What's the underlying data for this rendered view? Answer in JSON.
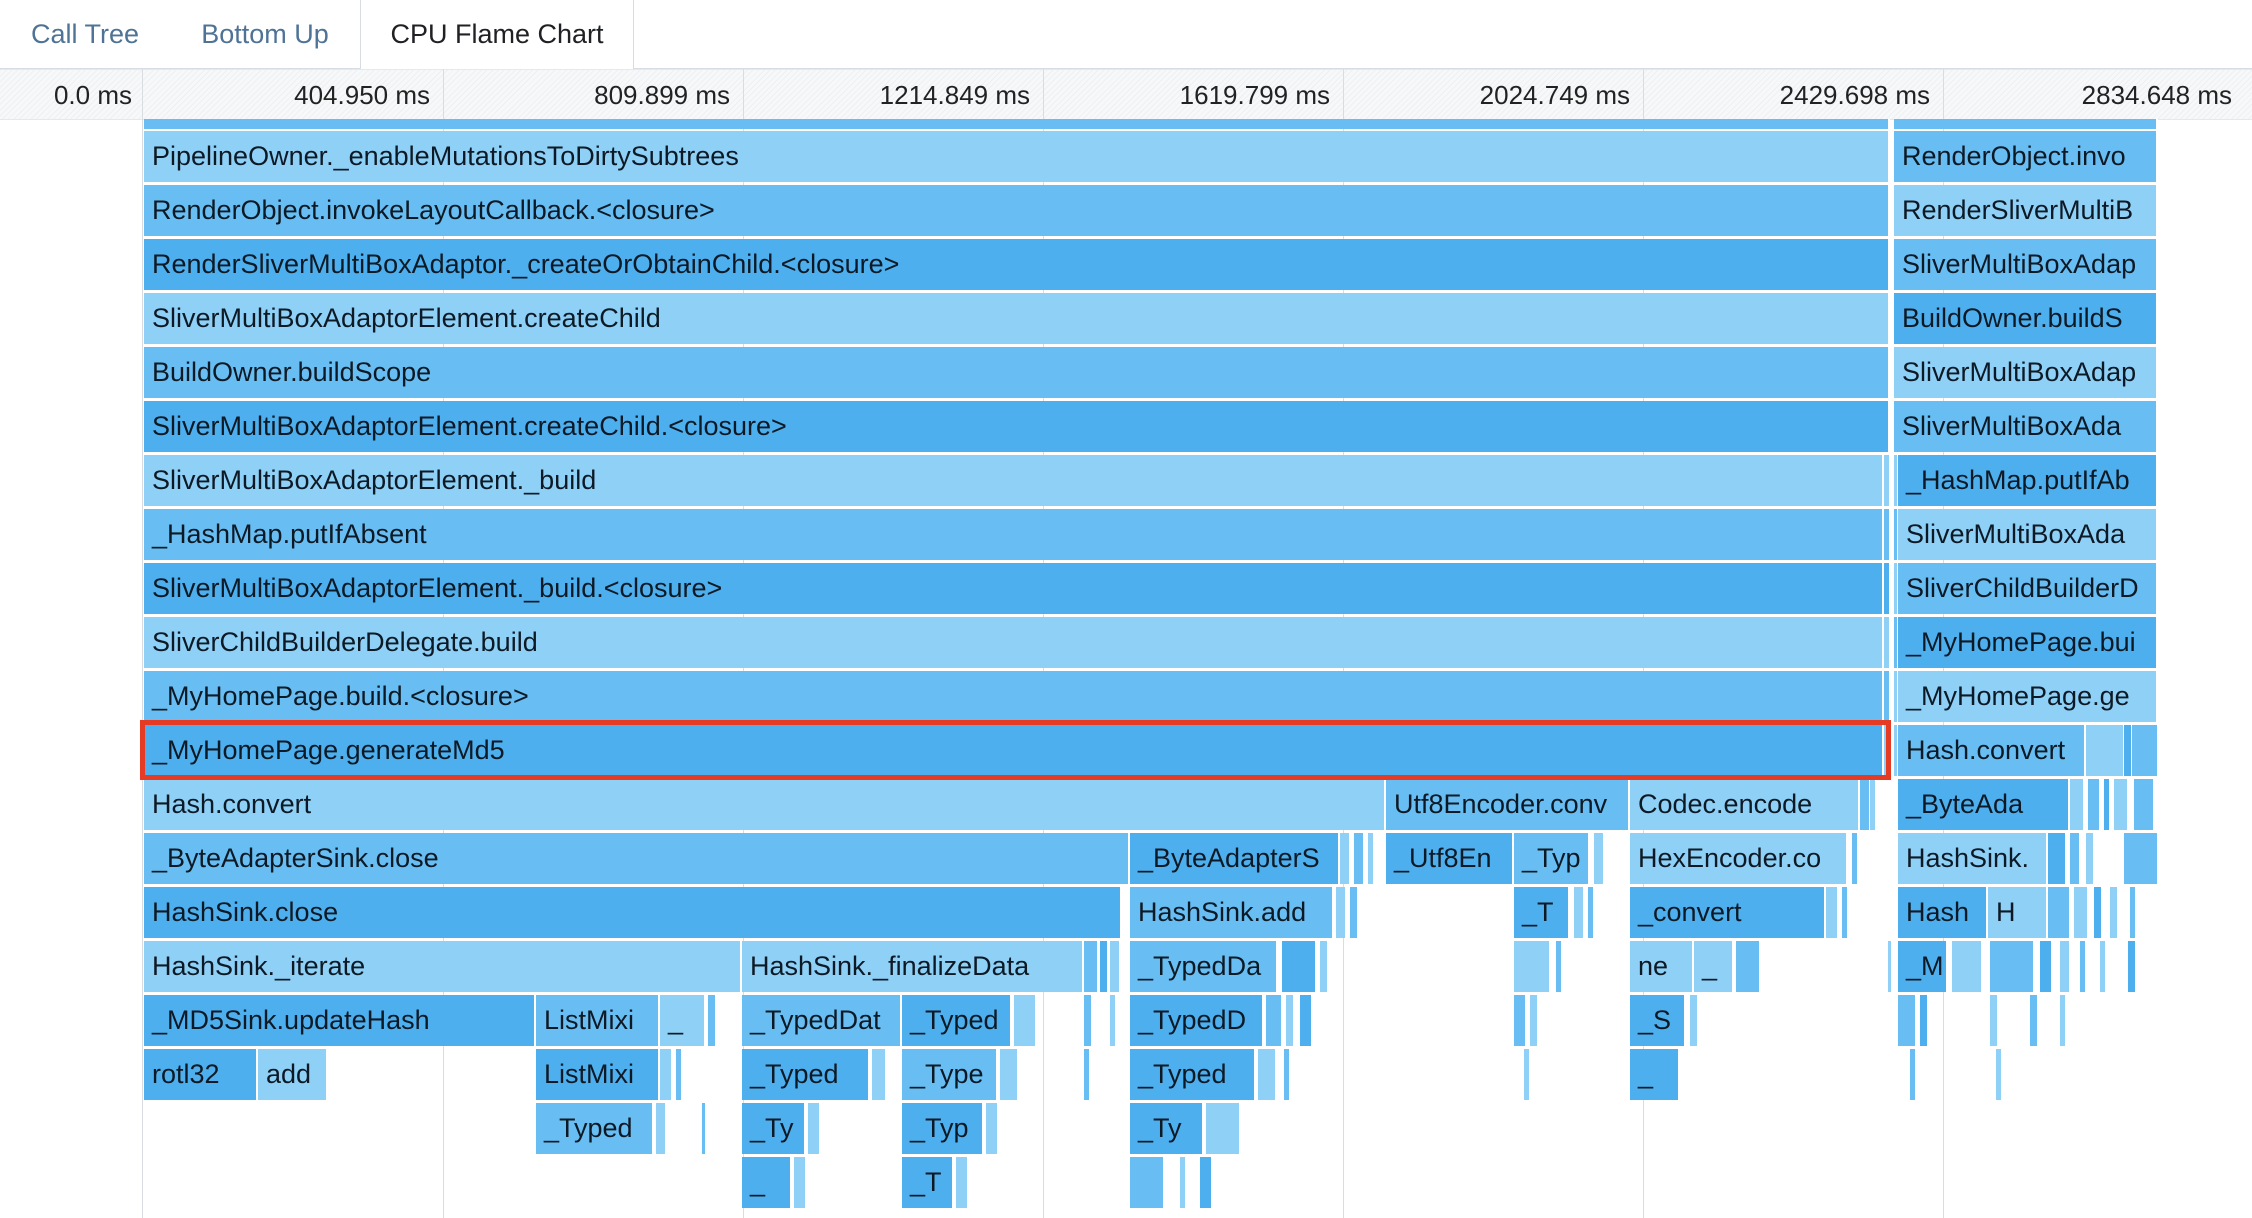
{
  "tabs": [
    {
      "label": "Call Tree"
    },
    {
      "label": "Bottom Up"
    },
    {
      "label": "CPU Flame Chart",
      "active": true
    }
  ],
  "timeline": {
    "ticks": [
      "0.0 ms",
      "404.950 ms",
      "809.899 ms",
      "1214.849 ms",
      "1619.799 ms",
      "2024.749 ms",
      "2429.698 ms",
      "2834.648 ms"
    ]
  },
  "frames": {
    "main": [
      "PipelineOwner._enableMutationsToDirtySubtrees",
      "RenderObject.invokeLayoutCallback.<closure>",
      "RenderSliverMultiBoxAdaptor._createOrObtainChild.<closure>",
      "SliverMultiBoxAdaptorElement.createChild",
      "BuildOwner.buildScope",
      "SliverMultiBoxAdaptorElement.createChild.<closure>",
      "SliverMultiBoxAdaptorElement._build",
      "_HashMap.putIfAbsent",
      "SliverMultiBoxAdaptorElement._build.<closure>",
      "SliverChildBuilderDelegate.build",
      "_MyHomePage.build.<closure>",
      "_MyHomePage.generateMd5"
    ],
    "right": [
      "RenderObject.invo",
      "RenderSliverMultiB",
      "SliverMultiBoxAdap",
      "BuildOwner.buildS",
      "SliverMultiBoxAdap",
      "SliverMultiBoxAda",
      "_HashMap.putIfAb",
      "SliverMultiBoxAda",
      "SliverChildBuilderD",
      "_MyHomePage.bui",
      "_MyHomePage.ge",
      "Hash.convert"
    ],
    "lower": {
      "hash_convert": "Hash.convert",
      "utf8_encoder": "Utf8Encoder.conv",
      "codec_encode": "Codec.encode",
      "r_byte_ada": "_ByteAda",
      "byte_adapter_close": "_ByteAdapterSink.close",
      "byte_adapter_s": "_ByteAdapterS",
      "utf8_en": "_Utf8En",
      "typ_a": "_Typ",
      "hex_encoder": "HexEncoder.co",
      "r_hash_sink": "HashSink.",
      "hash_sink_close": "HashSink.close",
      "hash_sink_add": "HashSink.add",
      "t_a": "_T",
      "convert": "_convert",
      "r_hash": "Hash",
      "r_h": "H",
      "hash_sink_iterate": "HashSink._iterate",
      "hash_sink_finalize": "HashSink._finalizeData",
      "typed_da": "_TypedDa",
      "ne": "ne",
      "underscore_a": "_",
      "r_m": "_M",
      "md5_update": "_MD5Sink.updateHash",
      "list_mixi_a": "ListMixi",
      "underscore_b": "_",
      "typed_dat": "_TypedDat",
      "typed_a": "_Typed",
      "typed_d": "_TypedD",
      "s": "_S",
      "rotl32": "rotl32",
      "add": "add",
      "list_mixi_b": "ListMixi",
      "typed_b": "_Typed",
      "type_a": "_Type",
      "typed_c": "_Typed",
      "underscore_c": "_",
      "typed_e": "_Typed",
      "ty_a": "_Ty",
      "typ_b": "_Typ",
      "ty_b": "_Ty",
      "underscore_d": "_",
      "t_b": "_T"
    }
  },
  "colors": {
    "light": "#8fd0f7",
    "medium": "#68bef3",
    "dark": "#4eafee",
    "highlight": "#e53a24"
  }
}
